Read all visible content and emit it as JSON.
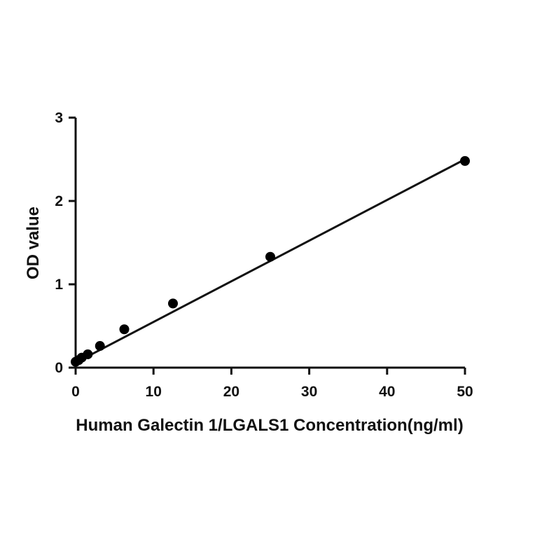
{
  "chart_data": {
    "type": "scatter",
    "xlabel": "Human Galectin 1/LGALS1 Concentration(ng/ml)",
    "ylabel": "OD value",
    "xlim": [
      0,
      50
    ],
    "ylim": [
      0,
      3
    ],
    "x_ticks": [
      0,
      10,
      20,
      30,
      40,
      50
    ],
    "y_ticks": [
      0,
      1,
      2,
      3
    ],
    "x_tick_labels": [
      "0",
      "10",
      "20",
      "30",
      "40",
      "50"
    ],
    "y_tick_labels": [
      "0",
      "1",
      "2",
      "3"
    ],
    "grid": false,
    "series": [
      {
        "x": [
          0,
          0.39,
          0.78,
          1.56,
          3.125,
          6.25,
          12.5,
          25,
          50
        ],
        "y": [
          0.07,
          0.09,
          0.12,
          0.16,
          0.26,
          0.46,
          0.77,
          1.33,
          2.48
        ]
      }
    ],
    "fit_line": {
      "type": "linear",
      "x": [
        0,
        50
      ],
      "y": [
        0.06,
        2.5
      ]
    },
    "colors": {
      "marker": "#000000",
      "line": "#111111",
      "axis": "#111111"
    }
  }
}
